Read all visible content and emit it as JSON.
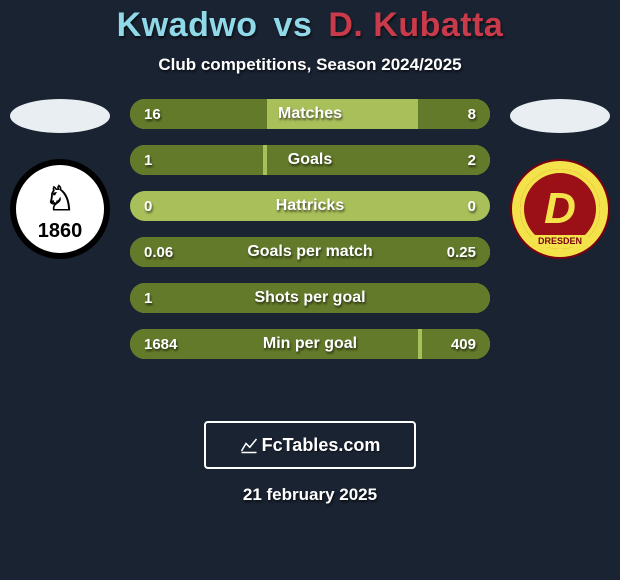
{
  "colors": {
    "background": "#1a2332",
    "p1_accent": "#8fd9e8",
    "p2_accent": "#c93a4a",
    "bar_track": "#a8bf5a",
    "bar_left_fill": "#637a2a",
    "bar_right_fill": "#637a2a",
    "text": "#ffffff",
    "head_oval": "#e9eef2",
    "brand_border": "#ffffff"
  },
  "title": {
    "p1": "Kwadwo",
    "vs": "vs",
    "p2": "D. Kubatta",
    "fontsize": 34
  },
  "subtitle": "Club competitions, Season 2024/2025",
  "badges": {
    "left": {
      "year": "1860"
    },
    "right": {
      "letter": "D",
      "ribbon": "DRESDEN"
    }
  },
  "bars": {
    "height": 30,
    "gap": 16,
    "label_fontsize": 16,
    "value_fontsize": 15,
    "items": [
      {
        "label": "Matches",
        "left": "16",
        "right": "8",
        "left_pct": 38,
        "right_pct": 20
      },
      {
        "label": "Goals",
        "left": "1",
        "right": "2",
        "left_pct": 37,
        "right_pct": 62
      },
      {
        "label": "Hattricks",
        "left": "0",
        "right": "0",
        "left_pct": 0,
        "right_pct": 0
      },
      {
        "label": "Goals per match",
        "left": "0.06",
        "right": "0.25",
        "left_pct": 20,
        "right_pct": 80
      },
      {
        "label": "Shots per goal",
        "left": "1",
        "right": "",
        "left_pct": 100,
        "right_pct": 0
      },
      {
        "label": "Min per goal",
        "left": "1684",
        "right": "409",
        "left_pct": 80,
        "right_pct": 19
      }
    ]
  },
  "brand": "FcTables.com",
  "date": "21 february 2025"
}
